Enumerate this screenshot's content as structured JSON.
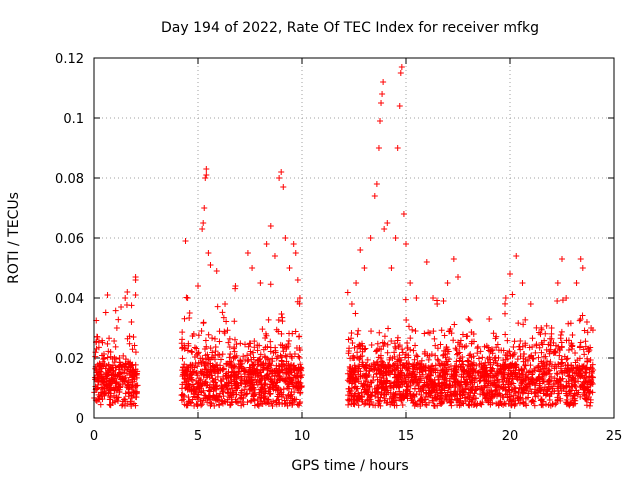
{
  "chart_data": {
    "type": "scatter",
    "title": "Day 194 of 2022, Rate Of TEC Index for receiver mfkg",
    "xlabel": "GPS time / hours",
    "ylabel": "ROTI / TECUs",
    "xlim": [
      0,
      25
    ],
    "ylim": [
      0,
      0.12
    ],
    "xticks": [
      "0",
      "5",
      "10",
      "15",
      "20",
      "25"
    ],
    "yticks": [
      "0",
      "0.02",
      "0.04",
      "0.06",
      "0.08",
      "0.1",
      "0.12"
    ],
    "grid": true,
    "marker": "plus",
    "color": "#ff0000",
    "data_coverage": [
      {
        "start": 0.0,
        "end": 2.1
      },
      {
        "start": 4.2,
        "end": 10.0
      },
      {
        "start": 12.2,
        "end": 24.0
      }
    ],
    "points": [
      [
        0.2,
        0.012
      ],
      [
        0.5,
        0.018
      ],
      [
        0.8,
        0.022
      ],
      [
        1.1,
        0.03
      ],
      [
        1.3,
        0.037
      ],
      [
        1.5,
        0.04
      ],
      [
        1.6,
        0.042
      ],
      [
        1.8,
        0.032
      ],
      [
        1.9,
        0.027
      ],
      [
        2.0,
        0.046
      ],
      [
        2.0,
        0.047
      ],
      [
        2.0,
        0.041
      ],
      [
        4.4,
        0.059
      ],
      [
        4.5,
        0.04
      ],
      [
        4.6,
        0.035
      ],
      [
        4.8,
        0.028
      ],
      [
        5.0,
        0.044
      ],
      [
        5.2,
        0.063
      ],
      [
        5.25,
        0.065
      ],
      [
        5.3,
        0.07
      ],
      [
        5.35,
        0.08
      ],
      [
        5.4,
        0.083
      ],
      [
        5.4,
        0.081
      ],
      [
        5.5,
        0.055
      ],
      [
        5.6,
        0.051
      ],
      [
        5.9,
        0.049
      ],
      [
        6.3,
        0.038
      ],
      [
        6.8,
        0.044
      ],
      [
        7.4,
        0.055
      ],
      [
        7.6,
        0.05
      ],
      [
        8.0,
        0.045
      ],
      [
        8.3,
        0.058
      ],
      [
        8.5,
        0.064
      ],
      [
        8.7,
        0.054
      ],
      [
        8.9,
        0.08
      ],
      [
        9.0,
        0.082
      ],
      [
        9.1,
        0.077
      ],
      [
        9.2,
        0.06
      ],
      [
        9.4,
        0.05
      ],
      [
        9.6,
        0.058
      ],
      [
        9.7,
        0.055
      ],
      [
        9.8,
        0.046
      ],
      [
        9.9,
        0.04
      ],
      [
        12.4,
        0.038
      ],
      [
        12.6,
        0.045
      ],
      [
        12.8,
        0.056
      ],
      [
        13.0,
        0.05
      ],
      [
        13.3,
        0.06
      ],
      [
        13.5,
        0.074
      ],
      [
        13.6,
        0.078
      ],
      [
        13.7,
        0.09
      ],
      [
        13.75,
        0.099
      ],
      [
        13.8,
        0.105
      ],
      [
        13.85,
        0.108
      ],
      [
        13.9,
        0.112
      ],
      [
        13.95,
        0.063
      ],
      [
        14.1,
        0.065
      ],
      [
        14.3,
        0.05
      ],
      [
        14.5,
        0.06
      ],
      [
        14.6,
        0.09
      ],
      [
        14.7,
        0.104
      ],
      [
        14.75,
        0.115
      ],
      [
        14.8,
        0.117
      ],
      [
        14.9,
        0.068
      ],
      [
        15.0,
        0.058
      ],
      [
        15.2,
        0.045
      ],
      [
        15.5,
        0.04
      ],
      [
        16.0,
        0.052
      ],
      [
        16.3,
        0.04
      ],
      [
        16.5,
        0.038
      ],
      [
        17.0,
        0.045
      ],
      [
        17.3,
        0.053
      ],
      [
        17.5,
        0.047
      ],
      [
        18.0,
        0.033
      ],
      [
        19.0,
        0.033
      ],
      [
        19.8,
        0.04
      ],
      [
        20.0,
        0.048
      ],
      [
        20.3,
        0.054
      ],
      [
        20.6,
        0.045
      ],
      [
        21.0,
        0.038
      ],
      [
        21.5,
        0.03
      ],
      [
        22.0,
        0.03
      ],
      [
        22.3,
        0.045
      ],
      [
        22.5,
        0.053
      ],
      [
        22.7,
        0.04
      ],
      [
        23.2,
        0.045
      ],
      [
        23.4,
        0.053
      ],
      [
        23.5,
        0.05
      ],
      [
        23.7,
        0.032
      ],
      [
        23.9,
        0.03
      ]
    ]
  }
}
